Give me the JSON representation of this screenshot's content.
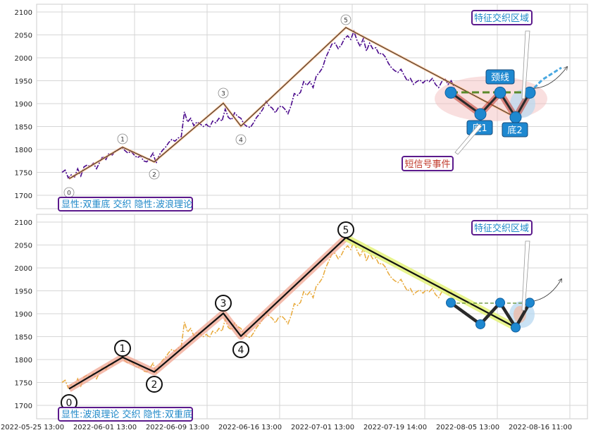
{
  "chart_data": [
    {
      "type": "line",
      "panel": "top",
      "ylim": [
        1665,
        2110
      ],
      "yticks": [
        1700,
        1750,
        1800,
        1850,
        1900,
        1950,
        2000,
        2050,
        2100
      ],
      "grid": true,
      "series": [
        {
          "values": [
            1750,
            1755,
            1738,
            1745,
            1740,
            1758,
            1742,
            1762,
            1766,
            1763,
            1770,
            1758,
            1772,
            1785,
            1778,
            1792,
            1788,
            1796,
            1800,
            1805,
            1798,
            1792,
            1796,
            1788,
            1782,
            1786,
            1775,
            1773,
            1781,
            1792,
            1770,
            1788,
            1798,
            1805,
            1815,
            1822,
            1818,
            1825,
            1828,
            1882,
            1860,
            1868,
            1852,
            1860,
            1856,
            1850,
            1855,
            1848,
            1862,
            1858,
            1868,
            1862,
            1888,
            1870,
            1865,
            1880,
            1872,
            1868,
            1855,
            1850,
            1848,
            1858,
            1870,
            1878,
            1888,
            1905,
            1895,
            1890,
            1880,
            1892,
            1895,
            1888,
            1878,
            1896,
            1922,
            1918,
            1925,
            1948,
            1940,
            1948,
            1935,
            1960,
            1968,
            1978,
            2000,
            2015,
            2030,
            2032,
            2020,
            2028,
            2042,
            2048,
            2040,
            2058,
            2038,
            2025,
            2042,
            2015,
            2032,
            2020,
            2022,
            2008,
            2010,
            2002,
            1988,
            1978,
            1972,
            1968,
            1975,
            1962,
            1950,
            1955,
            1942,
            1948,
            1952,
            1945,
            1952,
            1948,
            1955,
            1942,
            1935,
            1948,
            1955,
            1942,
            1950,
            1935
          ]
        },
        {
          "values": [
            1736,
            1805,
            1773,
            1901,
            1851,
            2066,
            1924,
            1877,
            1924,
            1870,
            1924,
            1970
          ]
        }
      ]
    },
    {
      "type": "line",
      "panel": "bottom",
      "ylim": [
        1665,
        2110
      ],
      "yticks": [
        1700,
        1750,
        1800,
        1850,
        1900,
        1950,
        2000,
        2050,
        2100
      ],
      "xticks": [
        "2022-05-25 13:00",
        "2022-06-01 13:00",
        "2022-06-09 13:00",
        "2022-06-16 13:00",
        "2022-07-01 13:00",
        "2022-07-19 14:00",
        "2022-08-05 13:00",
        "2022-08-16 11:00"
      ],
      "grid": true,
      "series": [
        {
          "values": [
            1736,
            1805,
            1773,
            1901,
            1851,
            2066,
            1870
          ]
        },
        {
          "values": [
            1924,
            1877,
            1924,
            1870,
            1924
          ]
        }
      ]
    }
  ],
  "top": {
    "wave_labels": [
      "0",
      "1",
      "2",
      "3",
      "4",
      "5"
    ],
    "neckline_label": "颈线",
    "bottom1_label": "底1",
    "bottom2_label": "底2",
    "zone_label": "特征交织区域",
    "event_label": "短信号事件",
    "caption": "显性:双重底 交织 隐性:波浪理论"
  },
  "bottom": {
    "wave_labels": [
      "0",
      "1",
      "2",
      "3",
      "4",
      "5"
    ],
    "zone_label": "特征交织区域",
    "caption": "显性:波浪理论 交织 隐性:双重底"
  },
  "colors": {
    "price_top": "#4b0a8c",
    "price_bottom": "#e8a93a",
    "wave_top": "#f4a66a",
    "wave_bottom": "#f0a08a",
    "box_border": "#5b1a8c",
    "box_text": "#1e88c8",
    "pattern_node": "#1e88d0",
    "pattern_line": "#c0392b",
    "neckline": "#5a8a2a",
    "event_text": "#c0392b"
  }
}
